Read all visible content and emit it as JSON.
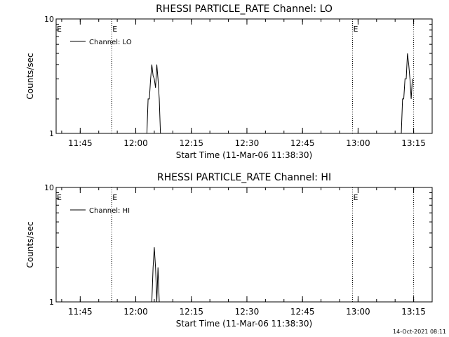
{
  "chart_data": [
    {
      "type": "line",
      "title": "RHESSI PARTICLE_RATE Channel: LO",
      "xlabel": "Start Time (11-Mar-06 11:38:30)",
      "ylabel": "Counts/sec",
      "xlim": [
        "11:38:30",
        "13:20:00"
      ],
      "ylim": [
        1,
        10
      ],
      "yscale": "log",
      "xticks": [
        "11:45",
        "12:00",
        "12:15",
        "12:30",
        "12:45",
        "13:00",
        "13:15"
      ],
      "yticks": [
        "1",
        "10"
      ],
      "legend": {
        "position": "top-left",
        "label": "Channel: LO"
      },
      "event_markers": [
        {
          "time": "11:53:30",
          "label": "E"
        },
        {
          "time": "12:58:30",
          "label": "E"
        },
        {
          "time": "13:15:00",
          "label": ""
        }
      ],
      "series": [
        {
          "name": "Channel: LO",
          "x": [
            "11:38:30",
            "12:03:00",
            "12:03:20",
            "12:03:40",
            "12:04:00",
            "12:04:20",
            "12:04:40",
            "12:05:00",
            "12:05:20",
            "12:05:40",
            "12:06:00",
            "12:06:20",
            "12:06:40",
            "12:07:00",
            "12:07:20",
            "13:11:40",
            "13:12:00",
            "13:12:20",
            "13:12:40",
            "13:13:00",
            "13:13:20",
            "13:13:40",
            "13:14:00",
            "13:14:20",
            "13:14:40"
          ],
          "y": [
            1,
            1,
            2,
            2,
            3,
            4,
            3.2,
            3,
            2.5,
            4,
            3,
            2,
            1,
            1,
            1,
            1,
            2,
            2,
            3,
            3,
            5,
            4,
            3,
            2,
            3
          ]
        }
      ]
    },
    {
      "type": "line",
      "title": "RHESSI PARTICLE_RATE Channel: HI",
      "xlabel": "Start Time (11-Mar-06 11:38:30)",
      "ylabel": "Counts/sec",
      "xlim": [
        "11:38:30",
        "13:20:00"
      ],
      "ylim": [
        1,
        10
      ],
      "yscale": "log",
      "xticks": [
        "11:45",
        "12:00",
        "12:15",
        "12:30",
        "12:45",
        "13:00",
        "13:15"
      ],
      "yticks": [
        "1",
        "10"
      ],
      "legend": {
        "position": "top-left",
        "label": "Channel: HI"
      },
      "event_markers": [
        {
          "time": "11:53:30",
          "label": "E"
        },
        {
          "time": "12:58:30",
          "label": "E"
        },
        {
          "time": "13:15:00",
          "label": ""
        }
      ],
      "series": [
        {
          "name": "Channel: HI",
          "x": [
            "11:38:30",
            "12:04:20",
            "12:04:40",
            "12:05:00",
            "12:05:20",
            "12:05:40",
            "12:06:00",
            "12:06:20",
            "12:06:40",
            "12:07:00"
          ],
          "y": [
            1,
            1,
            2,
            3,
            2,
            1,
            2,
            1,
            1,
            1
          ]
        }
      ]
    }
  ],
  "timestamp": "14-Oct-2021 08:11"
}
